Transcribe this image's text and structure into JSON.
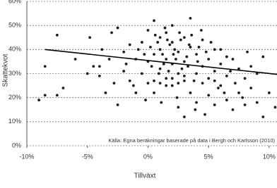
{
  "chart_data": {
    "type": "scatter",
    "x_label": "Tillväxt",
    "y_label": "Skattekvot",
    "annotation": "Källa:  Egna beräkningar baserade på data i Bergh och Karlsson (2010)",
    "color": "#1e1e1e",
    "x": [
      -9,
      -8.5,
      -8.5,
      -7.5,
      -7.5,
      -7,
      -6,
      -4.8,
      -5,
      -4.5,
      -4,
      -4,
      -3.5,
      -3.2,
      -3,
      -2.5,
      -2.5,
      -2,
      -2,
      -1.5,
      -1.5,
      -1,
      -1,
      -0.5,
      -0.5,
      0,
      0,
      0,
      0.5,
      0.5,
      0.5,
      1,
      1,
      1,
      1.5,
      1.5,
      1.5,
      2,
      2,
      2,
      2,
      2.5,
      2.5,
      2.5,
      3,
      3,
      3,
      3,
      3.5,
      3.5,
      3.5,
      4,
      4,
      4,
      4.5,
      4.5,
      4.5,
      5,
      5,
      5,
      5.5,
      5.5,
      5.5,
      6,
      6,
      6.5,
      6.5,
      7,
      7,
      7.5,
      7.5,
      8,
      8,
      8.5,
      8.5,
      9,
      9,
      9.5,
      9.5,
      10,
      10.5,
      11,
      0.2,
      0.8,
      1.2,
      1.8,
      2.2,
      2.7,
      3.2,
      0.5,
      1,
      1.5,
      2,
      2.5,
      3,
      0.3,
      1.3,
      2.3,
      3.3,
      4.2,
      -0.3,
      -0.8,
      1.7,
      2.8,
      3.8,
      4.8,
      0.6,
      1.4,
      2.6,
      3.6,
      4.4,
      5.2,
      6,
      6.5,
      7.2,
      -1.8,
      -2.8,
      -3.8,
      -0.2,
      1.1,
      2.4,
      3.9,
      4.7,
      5.8,
      6.8,
      8.2,
      7.8,
      -1.2,
      0.9,
      1.6,
      2.1,
      3.4,
      4.1,
      5.5,
      6.3
    ],
    "values": [
      19,
      33,
      21,
      46,
      21,
      24,
      36,
      45,
      30,
      33,
      33,
      29,
      22,
      36,
      47,
      17,
      49,
      39,
      31,
      42,
      27,
      36,
      22,
      43,
      30,
      48,
      26,
      35,
      52,
      38,
      22,
      45,
      32,
      40,
      28,
      47,
      36,
      43,
      25,
      34,
      50,
      39,
      30,
      16,
      45,
      27,
      35,
      12,
      41,
      22,
      53,
      38,
      30,
      18,
      44,
      26,
      33,
      36,
      28,
      21,
      40,
      17,
      31,
      25,
      34,
      29,
      19,
      36,
      15,
      32,
      22,
      28,
      17,
      33,
      24,
      18,
      30,
      12,
      37,
      22,
      16,
      17,
      41,
      43,
      38,
      42,
      40,
      44,
      37,
      27,
      26,
      25,
      28,
      26,
      29,
      33,
      34,
      36,
      33,
      41,
      38,
      40,
      31,
      32,
      27,
      39,
      46,
      49,
      47,
      46,
      48,
      43,
      40,
      37,
      26,
      34,
      26,
      40,
      19,
      18,
      20,
      15,
      13,
      24,
      31,
      39,
      20,
      25,
      30,
      44,
      38,
      42,
      35,
      27,
      22
    ],
    "trend_line": {
      "x": [
        -8.5,
        11
      ],
      "y": [
        40,
        29.5
      ],
      "color": "#000000"
    },
    "xlim": [
      -10,
      11
    ],
    "ylim": [
      0,
      60
    ],
    "xticks": [
      {
        "value": -10,
        "label": "-10%"
      },
      {
        "value": -5,
        "label": "-5%"
      },
      {
        "value": 0,
        "label": "0%"
      },
      {
        "value": 5,
        "label": "5%"
      },
      {
        "value": 10,
        "label": "10%"
      }
    ],
    "yticks": [
      {
        "value": 0,
        "label": "0%"
      },
      {
        "value": 10,
        "label": "10%"
      },
      {
        "value": 20,
        "label": "20%"
      },
      {
        "value": 30,
        "label": "30%"
      },
      {
        "value": 40,
        "label": "40%"
      },
      {
        "value": 50,
        "label": "50%"
      },
      {
        "value": 60,
        "label": "60%"
      }
    ],
    "grid": true
  }
}
